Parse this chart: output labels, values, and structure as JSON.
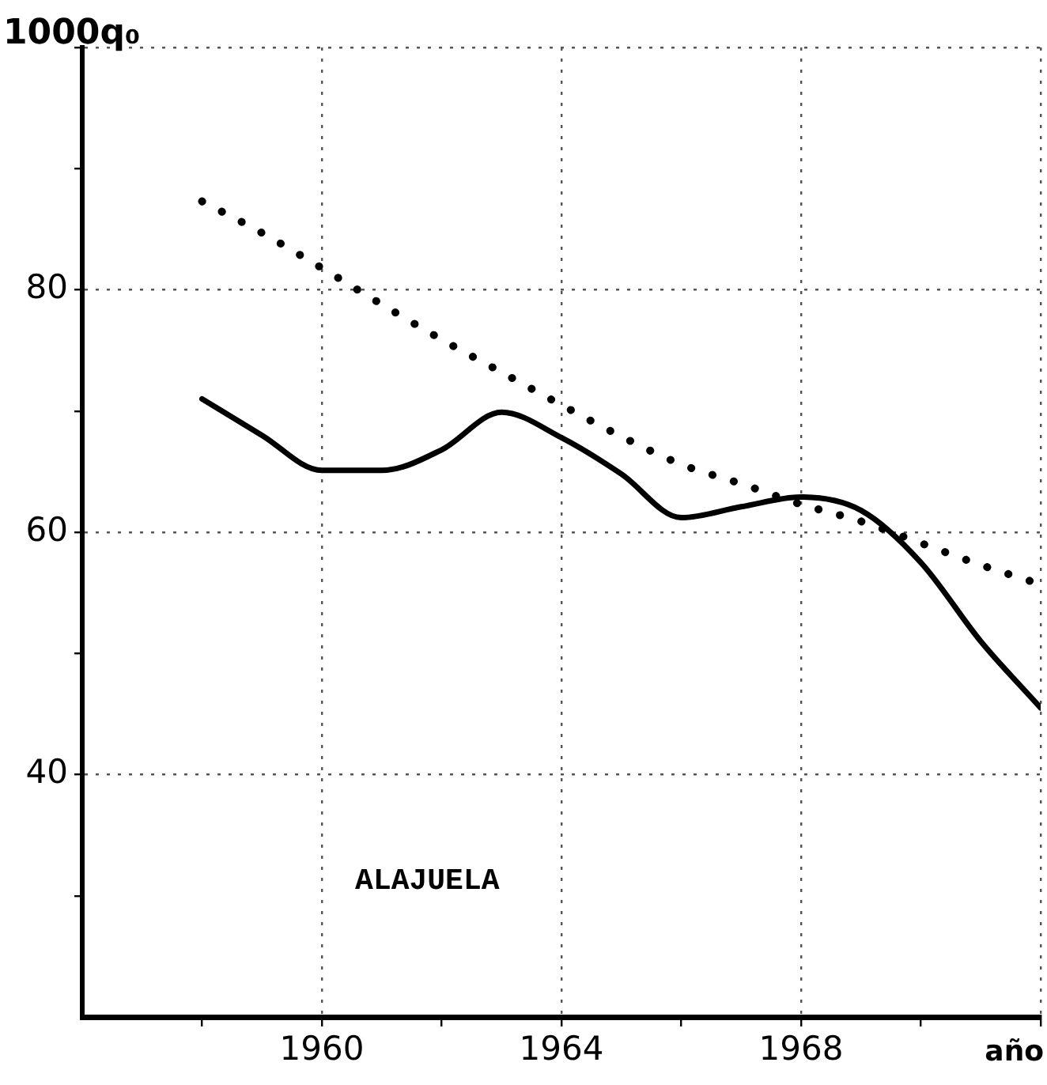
{
  "chart_data": {
    "type": "line",
    "ylabel": "1000q₀",
    "xlabel": "año",
    "annotations": [
      "ALAJUELA"
    ],
    "x": [
      1958,
      1959,
      1960,
      1961,
      1962,
      1963,
      1964,
      1965,
      1966,
      1967,
      1968,
      1969,
      1970,
      1971,
      1972
    ],
    "series": [
      {
        "color": "#000000",
        "line_style": "solid",
        "values": [
          71.0,
          68.0,
          65.1,
          65.1,
          66.8,
          69.9,
          67.8,
          64.8,
          61.2,
          62.1,
          62.9,
          61.8,
          57.5,
          51.0,
          45.5
        ]
      },
      {
        "color": "#000000",
        "line_style": "dotted",
        "values": [
          87.3,
          84.7,
          81.8,
          78.8,
          75.9,
          73.2,
          70.5,
          67.9,
          65.6,
          64.0,
          62.3,
          60.9,
          59.1,
          57.3,
          55.7
        ]
      }
    ],
    "xlim": [
      1956,
      1972
    ],
    "ylim": [
      20,
      100
    ],
    "xticks": [
      {
        "value": 1958,
        "label": null
      },
      1960,
      {
        "value": 1962,
        "label": null
      },
      1964,
      {
        "value": 1966,
        "label": null
      },
      1968,
      {
        "value": 1970,
        "label": null
      },
      {
        "value": 1972,
        "label": null
      }
    ],
    "yticks": [
      {
        "value": 30,
        "label": null
      },
      40,
      {
        "value": 50,
        "label": null
      },
      60,
      {
        "value": 70,
        "label": null
      },
      80,
      {
        "value": 90,
        "label": null
      },
      {
        "value": 100,
        "label": null
      }
    ],
    "grid": true,
    "marker": "none"
  }
}
